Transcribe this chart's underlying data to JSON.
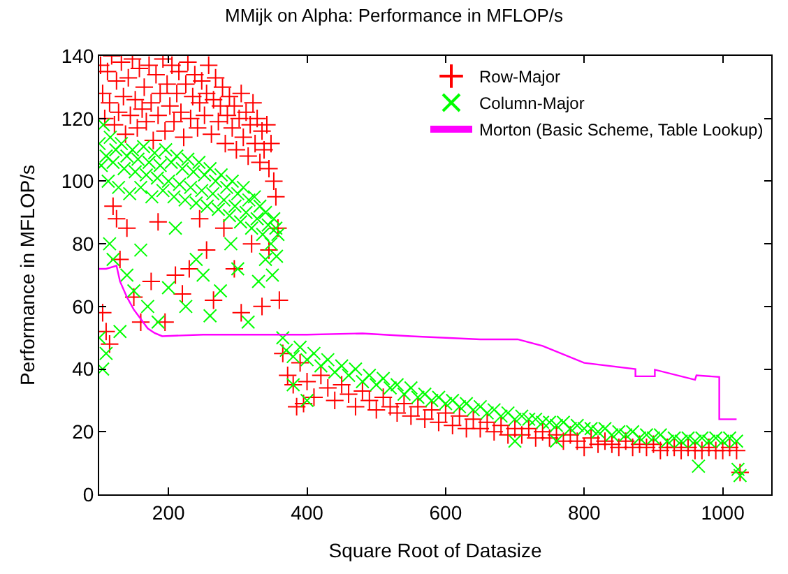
{
  "chart_data": {
    "type": "scatter",
    "title": "MMijk on Alpha: Performance in MFLOP/s",
    "xlabel": "Square Root of Datasize",
    "ylabel": "Performance in MFLOP/s",
    "xlim": [
      100,
      1070
    ],
    "xticks": [
      200,
      400,
      600,
      800,
      1000
    ],
    "ylim": [
      0,
      140
    ],
    "yticks": [
      0,
      20,
      40,
      60,
      80,
      100,
      120,
      140
    ],
    "legend": "top right",
    "series": [
      {
        "name": "Row-Major",
        "color": "#ff0000",
        "marker": "cross",
        "x": [
          102,
          105,
          108,
          112,
          115,
          118,
          122,
          125,
          128,
          132,
          135,
          138,
          142,
          145,
          148,
          152,
          155,
          158,
          162,
          165,
          168,
          172,
          175,
          178,
          182,
          185,
          188,
          192,
          195,
          198,
          202,
          205,
          208,
          212,
          215,
          218,
          222,
          225,
          228,
          232,
          235,
          238,
          242,
          245,
          248,
          252,
          255,
          258,
          262,
          265,
          268,
          272,
          275,
          278,
          282,
          285,
          288,
          292,
          295,
          298,
          302,
          305,
          308,
          312,
          315,
          318,
          322,
          325,
          328,
          332,
          335,
          338,
          342,
          345,
          348,
          352,
          105,
          110,
          115,
          120,
          125,
          130,
          140,
          150,
          160,
          175,
          185,
          195,
          210,
          220,
          230,
          245,
          255,
          265,
          280,
          295,
          305,
          320,
          335,
          345,
          355,
          360,
          358,
          365,
          372,
          380,
          390,
          400,
          410,
          420,
          430,
          440,
          450,
          460,
          470,
          480,
          490,
          500,
          510,
          520,
          530,
          540,
          550,
          560,
          570,
          580,
          590,
          600,
          610,
          620,
          630,
          640,
          650,
          660,
          670,
          680,
          690,
          700,
          710,
          720,
          730,
          740,
          750,
          760,
          770,
          780,
          790,
          800,
          810,
          820,
          830,
          840,
          850,
          860,
          870,
          880,
          890,
          900,
          910,
          920,
          930,
          940,
          950,
          960,
          970,
          980,
          990,
          1000,
          1010,
          1020,
          1025,
          385,
          395
        ],
        "values": [
          137,
          128,
          120,
          135,
          125,
          140,
          118,
          132,
          122,
          138,
          127,
          115,
          133,
          121,
          139,
          126,
          117,
          136,
          123,
          130,
          119,
          137,
          125,
          113,
          134,
          121,
          128,
          139,
          116,
          131,
          124,
          137,
          119,
          128,
          135,
          122,
          114,
          131,
          138,
          120,
          127,
          134,
          117,
          125,
          132,
          121,
          128,
          137,
          115,
          126,
          133,
          119,
          124,
          130,
          112,
          121,
          127,
          117,
          124,
          110,
          120,
          128,
          114,
          122,
          108,
          118,
          125,
          112,
          120,
          106,
          116,
          110,
          118,
          104,
          112,
          100,
          58,
          52,
          48,
          92,
          88,
          75,
          85,
          63,
          55,
          68,
          87,
          55,
          70,
          64,
          72,
          88,
          78,
          62,
          85,
          72,
          58,
          80,
          60,
          78,
          95,
          62,
          85,
          45,
          38,
          35,
          42,
          36,
          31,
          38,
          34,
          30,
          35,
          32,
          28,
          33,
          30,
          27,
          31,
          28,
          26,
          29,
          25,
          28,
          24,
          27,
          23,
          26,
          22,
          25,
          21,
          24,
          21,
          23,
          20,
          22,
          19,
          21,
          19,
          21,
          18,
          20,
          18,
          19,
          17,
          19,
          17,
          15,
          18,
          16,
          17,
          16,
          15,
          17,
          15,
          16,
          15,
          16,
          14,
          15,
          15,
          14,
          15,
          14,
          14,
          15,
          14,
          14,
          15,
          14,
          7,
          28,
          29
        ]
      },
      {
        "name": "Column-Major",
        "color": "#00ff00",
        "marker": "x",
        "x": [
          100,
          103,
          106,
          110,
          113,
          116,
          120,
          124,
          128,
          132,
          136,
          140,
          144,
          148,
          152,
          156,
          160,
          164,
          168,
          172,
          176,
          180,
          184,
          188,
          192,
          196,
          200,
          204,
          208,
          212,
          216,
          220,
          224,
          228,
          232,
          236,
          240,
          244,
          248,
          252,
          256,
          260,
          264,
          268,
          272,
          276,
          280,
          284,
          288,
          292,
          296,
          300,
          304,
          308,
          312,
          316,
          320,
          324,
          328,
          332,
          336,
          340,
          344,
          348,
          352,
          356,
          358,
          100,
          105,
          110,
          115,
          120,
          130,
          140,
          150,
          160,
          170,
          185,
          200,
          210,
          225,
          240,
          250,
          260,
          275,
          290,
          300,
          315,
          330,
          340,
          350,
          355,
          365,
          370,
          380,
          390,
          400,
          410,
          420,
          430,
          440,
          450,
          460,
          470,
          480,
          490,
          500,
          510,
          520,
          530,
          540,
          550,
          560,
          570,
          580,
          590,
          600,
          610,
          620,
          630,
          640,
          650,
          660,
          670,
          680,
          690,
          700,
          710,
          720,
          730,
          740,
          750,
          760,
          770,
          780,
          790,
          800,
          810,
          820,
          830,
          840,
          850,
          860,
          870,
          880,
          890,
          900,
          910,
          920,
          930,
          940,
          950,
          960,
          970,
          980,
          990,
          1000,
          1010,
          1020,
          380,
          400,
          700,
          760,
          965,
          1025,
          1022
        ],
        "values": [
          112,
          105,
          118,
          108,
          100,
          114,
          106,
          110,
          98,
          112,
          104,
          108,
          96,
          110,
          103,
          107,
          98,
          111,
          102,
          106,
          95,
          109,
          101,
          105,
          97,
          110,
          100,
          106,
          95,
          108,
          99,
          104,
          94,
          107,
          98,
          103,
          93,
          106,
          97,
          102,
          92,
          104,
          96,
          100,
          91,
          102,
          94,
          98,
          89,
          100,
          92,
          96,
          87,
          98,
          90,
          94,
          85,
          95,
          88,
          92,
          83,
          90,
          86,
          80,
          88,
          76,
          83,
          50,
          40,
          45,
          80,
          75,
          52,
          70,
          65,
          78,
          60,
          55,
          66,
          85,
          60,
          75,
          70,
          57,
          65,
          80,
          72,
          55,
          68,
          75,
          70,
          85,
          50,
          46,
          44,
          47,
          43,
          45,
          41,
          43,
          39,
          41,
          38,
          40,
          36,
          38,
          35,
          37,
          34,
          35,
          32,
          34,
          31,
          32,
          30,
          31,
          29,
          30,
          28,
          29,
          27,
          28,
          26,
          27,
          25,
          26,
          24,
          25,
          24,
          24,
          23,
          23,
          22,
          23,
          21,
          22,
          21,
          21,
          20,
          21,
          19,
          20,
          19,
          20,
          18,
          19,
          18,
          19,
          17,
          18,
          17,
          18,
          17,
          18,
          17,
          18,
          17,
          18,
          17,
          35,
          30,
          17,
          17,
          9,
          6,
          8
        ]
      },
      {
        "name": "Morton (Basic Scheme, Table Lookup)",
        "color": "#ff00ff",
        "type": "line",
        "marker": "none",
        "x": [
          100,
          110,
          125,
          130,
          140,
          150,
          160,
          170,
          180,
          191,
          250,
          300,
          400,
          480,
          550,
          650,
          704,
          740,
          800,
          874,
          874,
          902,
          902,
          960,
          962,
          995,
          995,
          1020
        ],
        "values": [
          72,
          72,
          73,
          68,
          63,
          59,
          56,
          53,
          51.5,
          50.5,
          51,
          51,
          51,
          51.4,
          50.5,
          49.5,
          49.5,
          47.4,
          42,
          40,
          37.7,
          37.7,
          39.8,
          36.6,
          38,
          37.5,
          24,
          24
        ]
      }
    ]
  }
}
